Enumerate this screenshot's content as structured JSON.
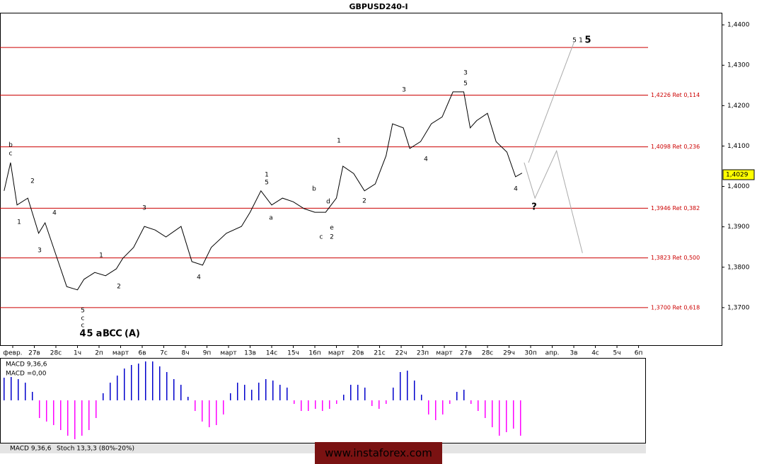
{
  "chart_data": [
    {
      "type": "line",
      "title": "GBPUSD240-I",
      "xlim": [
        -0.59,
        32.85
      ],
      "ylim": [
        1.3607,
        1.443
      ],
      "xticks": [
        {
          "value": 0,
          "label": "февр."
        },
        {
          "value": 1,
          "label": "27в"
        },
        {
          "value": 2,
          "label": "28с"
        },
        {
          "value": 3,
          "label": "1ч"
        },
        {
          "value": 4,
          "label": "2п"
        },
        {
          "value": 5,
          "label": "март"
        },
        {
          "value": 6,
          "label": "6в"
        },
        {
          "value": 7,
          "label": "7с"
        },
        {
          "value": 8,
          "label": "8ч"
        },
        {
          "value": 9,
          "label": "9п"
        },
        {
          "value": 10,
          "label": "март"
        },
        {
          "value": 11,
          "label": "13в"
        },
        {
          "value": 12,
          "label": "14с"
        },
        {
          "value": 13,
          "label": "15ч"
        },
        {
          "value": 14,
          "label": "16п"
        },
        {
          "value": 15,
          "label": "март"
        },
        {
          "value": 16,
          "label": "20в"
        },
        {
          "value": 17,
          "label": "21с"
        },
        {
          "value": 18,
          "label": "22ч"
        },
        {
          "value": 19,
          "label": "23п"
        },
        {
          "value": 20,
          "label": "март"
        },
        {
          "value": 21,
          "label": "27в"
        },
        {
          "value": 22,
          "label": "28с"
        },
        {
          "value": 23,
          "label": "29ч"
        },
        {
          "value": 24,
          "label": "30п"
        },
        {
          "value": 25,
          "label": "апр."
        },
        {
          "value": 26,
          "label": "3в"
        },
        {
          "value": 27,
          "label": "4с"
        },
        {
          "value": 28,
          "label": "5ч"
        },
        {
          "value": 29,
          "label": "6п"
        }
      ],
      "yticks": [
        {
          "value": 1.44,
          "label": "1,4400"
        },
        {
          "value": 1.43,
          "label": "1,4300"
        },
        {
          "value": 1.42,
          "label": "1,4200"
        },
        {
          "value": 1.41,
          "label": "1,4100"
        },
        {
          "value": 1.4,
          "label": "1,4000"
        },
        {
          "value": 1.39,
          "label": "1,3900"
        },
        {
          "value": 1.38,
          "label": "1,3800"
        },
        {
          "value": 1.37,
          "label": "1,3700"
        }
      ],
      "series": [
        {
          "color": "#000000",
          "x": [
            -0.4,
            -0.1,
            0.2,
            0.7,
            1.2,
            1.5,
            2.0,
            2.5,
            3.0,
            3.3,
            3.8,
            4.3,
            4.8,
            5.1,
            5.6,
            6.1,
            6.6,
            7.1,
            7.8,
            8.3,
            8.8,
            9.2,
            9.9,
            10.6,
            11.0,
            11.5,
            12.0,
            12.5,
            13.0,
            13.5,
            14.0,
            14.5,
            15.0,
            15.3,
            15.8,
            16.3,
            16.8,
            17.3,
            17.6,
            18.1,
            18.4,
            18.9,
            19.4,
            19.9,
            20.4,
            20.9,
            21.2,
            21.5,
            22.0,
            22.4,
            22.9,
            23.3,
            23.6
          ],
          "values": [
            1.3989,
            1.4059,
            1.3954,
            1.3971,
            1.3884,
            1.391,
            1.3831,
            1.3752,
            1.3744,
            1.377,
            1.3787,
            1.3779,
            1.3796,
            1.3822,
            1.3849,
            1.3901,
            1.3892,
            1.3875,
            1.3901,
            1.3814,
            1.3805,
            1.3849,
            1.3884,
            1.3901,
            1.3936,
            1.3989,
            1.3954,
            1.3971,
            1.3962,
            1.3945,
            1.3936,
            1.3936,
            1.3971,
            1.405,
            1.4032,
            1.3989,
            1.4006,
            1.4076,
            1.4155,
            1.4145,
            1.4094,
            1.4111,
            1.4155,
            1.4172,
            1.4234,
            1.4234,
            1.4145,
            1.4163,
            1.4181,
            1.4111,
            1.4085,
            1.4024,
            1.4033
          ]
        },
        {
          "color": "#aaaaaa",
          "x": [
            23.7,
            24.2,
            25.2,
            26.4
          ],
          "values": [
            1.4059,
            1.3971,
            1.4088,
            1.3835
          ]
        },
        {
          "color": "#aaaaaa",
          "x": [
            23.9,
            26.0
          ],
          "values": [
            1.4059,
            1.4356
          ]
        }
      ],
      "levels": [
        {
          "value": 1.4344
        },
        {
          "value": 1.4226,
          "label": "1,4226 Ret 0,114"
        },
        {
          "value": 1.4098,
          "label": "1,4098 Ret 0,236"
        },
        {
          "value": 1.3946,
          "label": "1,3946 Ret 0,382"
        },
        {
          "value": 1.3823,
          "label": "1,3823 Ret 0,500"
        },
        {
          "value": 1.37,
          "label": "1,3700 Ret 0,618"
        }
      ],
      "level_color": "#cc0000",
      "last_price": {
        "value": 1.4029,
        "label": "1,4029"
      },
      "annotations": [
        {
          "text": "b",
          "color": "#000000"
        },
        {
          "text": "c",
          "color": "#000000"
        },
        {
          "text": "1",
          "color": "#8b0000"
        },
        {
          "text": "2",
          "color": "#8b0000"
        },
        {
          "text": "3",
          "color": "#8b0000"
        },
        {
          "text": "4",
          "color": "#8b0000"
        },
        {
          "text": "5",
          "color": "#8b0000"
        },
        {
          "text": "c",
          "color": "#000000"
        },
        {
          "text": "c",
          "color": "#000000"
        },
        {
          "text": "4",
          "color": "#000000"
        },
        {
          "text": "5",
          "color": "#0000cc"
        },
        {
          "text": "a",
          "color": "#0000cc"
        },
        {
          "text": "B",
          "color": "#0000cc"
        },
        {
          "text": "C",
          "color": "#0000cc"
        },
        {
          "text": "C",
          "color": "#cc0000"
        },
        {
          "text": "(A)",
          "color": "#cc0000"
        },
        {
          "text": "1",
          "color": "#8b0000"
        },
        {
          "text": "2",
          "color": "#8b0000"
        },
        {
          "text": "3",
          "color": "#8b0000"
        },
        {
          "text": "4",
          "color": "#8b0000"
        },
        {
          "text": "1",
          "color": "#000000"
        },
        {
          "text": "5",
          "color": "#8b0000"
        },
        {
          "text": "a",
          "color": "#8b0000"
        },
        {
          "text": "b",
          "color": "#8b0000"
        },
        {
          "text": "d",
          "color": "#8b0000"
        },
        {
          "text": "c",
          "color": "#8b0000"
        },
        {
          "text": "e",
          "color": "#8b0000"
        },
        {
          "text": "2",
          "color": "#000000"
        },
        {
          "text": "1",
          "color": "#8b0000"
        },
        {
          "text": "2",
          "color": "#8b0000"
        },
        {
          "text": "3",
          "color": "#8b0000"
        },
        {
          "text": "4",
          "color": "#8b0000"
        },
        {
          "text": "3",
          "color": "#000000"
        },
        {
          "text": "5",
          "color": "#8b0000"
        },
        {
          "text": "4",
          "color": "#000000"
        },
        {
          "text": "?",
          "color": "#000000"
        },
        {
          "text": "5",
          "color": "#000000"
        },
        {
          "text": "1",
          "color": "#0000cc"
        },
        {
          "text": "5",
          "color": "#000000"
        }
      ]
    },
    {
      "type": "bar",
      "title": "MACD 9,36,6",
      "subtitle": "MACD =0,00",
      "ylim": [
        -0.006,
        0.006
      ],
      "positive_color": "#0000cc",
      "negative_color": "#ff00ff",
      "values": [
        0.0032,
        0.0033,
        0.003,
        0.0025,
        0.0012,
        -0.0025,
        -0.003,
        -0.0035,
        -0.0042,
        -0.005,
        -0.0055,
        -0.005,
        -0.0042,
        -0.0025,
        0.001,
        0.0025,
        0.0035,
        0.0045,
        0.005,
        0.0052,
        0.0055,
        0.0055,
        0.0048,
        0.004,
        0.003,
        0.0022,
        0.0005,
        -0.0015,
        -0.003,
        -0.0038,
        -0.0035,
        -0.002,
        0.001,
        0.0025,
        0.0022,
        0.0015,
        0.0025,
        0.003,
        0.0028,
        0.0022,
        0.0018,
        -0.0005,
        -0.0015,
        -0.0015,
        -0.0012,
        -0.0015,
        -0.0012,
        -0.0005,
        0.0008,
        0.0022,
        0.0022,
        0.0018,
        -0.0008,
        -0.0012,
        -0.0005,
        0.0018,
        0.004,
        0.0042,
        0.0028,
        0.0008,
        -0.002,
        -0.0028,
        -0.002,
        -0.0005,
        0.0012,
        0.0015,
        -0.0005,
        -0.0015,
        -0.0025,
        -0.0038,
        -0.005,
        -0.0045,
        -0.004,
        -0.005
      ]
    }
  ],
  "ui": {
    "tabs": [
      "MACD 9,36,6",
      "Stoch 13,3,3 (80%-20%)"
    ],
    "watermark": "www.instaforex.com"
  }
}
